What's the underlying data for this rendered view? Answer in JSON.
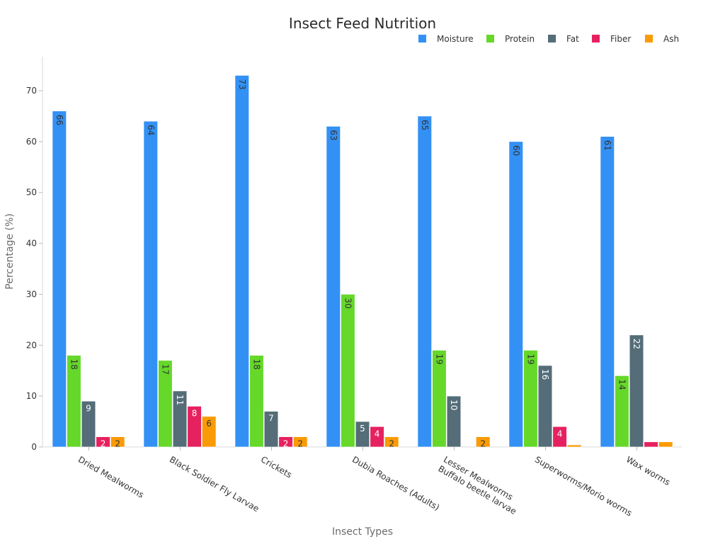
{
  "colors": {
    "Moisture": "#3391f5",
    "Protein": "#65d829",
    "Fat": "#546d78",
    "Fiber": "#e6215f",
    "Ash": "#fa9a05"
  },
  "chart_data": {
    "type": "bar",
    "title": "Insect Feed Nutrition",
    "xlabel": "Insect Types",
    "ylabel": "Percentage (%)",
    "ylim": [
      0,
      77
    ],
    "yticks": [
      0,
      10,
      20,
      30,
      40,
      50,
      60,
      70
    ],
    "legend_position": "top-right",
    "categories": [
      "Dried Mealworms",
      "Black Soldier Fly Larvae",
      "Crickets",
      "Dubia Roaches (Adults)",
      "Lesser Mealworms\nBuffalo beetle larvae",
      "Superworms/Morio worms",
      "Wax worms"
    ],
    "series": [
      {
        "name": "Moisture",
        "values": [
          66,
          64,
          73,
          63,
          65,
          60,
          61
        ],
        "labels": [
          "66",
          "64",
          "73",
          "63",
          "65",
          "60",
          "61"
        ]
      },
      {
        "name": "Protein",
        "values": [
          18,
          17,
          18,
          30,
          19,
          19,
          14
        ],
        "labels": [
          "18",
          "17",
          "18",
          "30",
          "19",
          "19",
          "14"
        ]
      },
      {
        "name": "Fat",
        "values": [
          9,
          11,
          7,
          5,
          10,
          16,
          22
        ],
        "labels": [
          "9",
          "11",
          "7",
          "5",
          "10",
          "16",
          "22"
        ]
      },
      {
        "name": "Fiber",
        "values": [
          2,
          8,
          2,
          4,
          0,
          4,
          1
        ],
        "labels": [
          "2",
          "8",
          "2",
          "4",
          "",
          "4",
          ""
        ]
      },
      {
        "name": "Ash",
        "values": [
          2,
          6,
          2,
          2,
          2,
          0.4,
          1
        ],
        "labels": [
          "2",
          "6",
          "2",
          "2",
          "2",
          "",
          ""
        ]
      }
    ]
  }
}
